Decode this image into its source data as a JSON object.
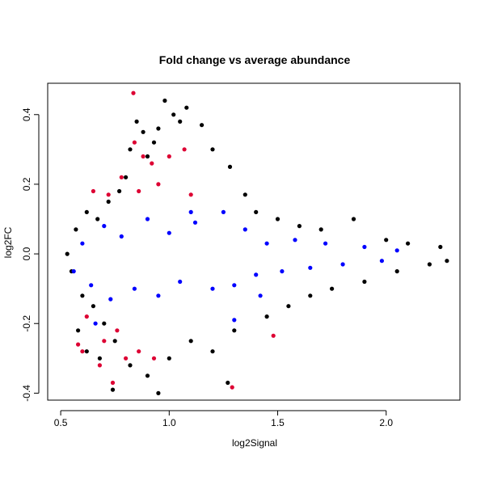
{
  "chart_data": {
    "type": "scatter",
    "title": "Fold change vs average abundance",
    "xlabel": "log2Signal",
    "ylabel": "log2FC",
    "xlim": [
      0.44,
      2.34
    ],
    "ylim": [
      -0.42,
      0.49
    ],
    "xticks": [
      0.5,
      1.0,
      1.5,
      2.0
    ],
    "xtick_labels": [
      "0.5",
      "1.0",
      "1.5",
      "2.0"
    ],
    "yticks": [
      -0.4,
      -0.2,
      0.0,
      0.2,
      0.4
    ],
    "ytick_labels": [
      "-0.4",
      "-0.2",
      "0.0",
      "0.2",
      "0.4"
    ],
    "grid": false,
    "legend": "none",
    "colors": {
      "black": "#000000",
      "blue": "#0000ff",
      "red": "#dd0033"
    },
    "series": [
      {
        "color": "#000000",
        "points": [
          [
            0.53,
            0.0
          ],
          [
            0.55,
            -0.05
          ],
          [
            0.57,
            0.07
          ],
          [
            0.6,
            -0.12
          ],
          [
            0.62,
            0.12
          ],
          [
            0.65,
            -0.15
          ],
          [
            0.67,
            0.1
          ],
          [
            0.7,
            -0.2
          ],
          [
            0.72,
            0.15
          ],
          [
            0.75,
            -0.25
          ],
          [
            0.77,
            0.18
          ],
          [
            0.8,
            0.22
          ],
          [
            0.82,
            0.3
          ],
          [
            0.85,
            0.38
          ],
          [
            0.88,
            0.35
          ],
          [
            0.9,
            0.28
          ],
          [
            0.93,
            0.32
          ],
          [
            0.95,
            0.36
          ],
          [
            0.98,
            0.44
          ],
          [
            1.02,
            0.4
          ],
          [
            1.05,
            0.38
          ],
          [
            1.08,
            0.42
          ],
          [
            1.15,
            0.37
          ],
          [
            1.2,
            0.3
          ],
          [
            1.28,
            0.25
          ],
          [
            1.35,
            0.17
          ],
          [
            1.4,
            0.12
          ],
          [
            1.5,
            0.1
          ],
          [
            1.6,
            0.08
          ],
          [
            1.7,
            0.07
          ],
          [
            1.85,
            0.1
          ],
          [
            2.0,
            0.04
          ],
          [
            2.1,
            0.03
          ],
          [
            2.25,
            0.02
          ],
          [
            2.28,
            -0.02
          ],
          [
            2.2,
            -0.03
          ],
          [
            2.05,
            -0.05
          ],
          [
            1.9,
            -0.08
          ],
          [
            1.75,
            -0.1
          ],
          [
            1.65,
            -0.12
          ],
          [
            1.55,
            -0.15
          ],
          [
            1.45,
            -0.18
          ],
          [
            1.3,
            -0.22
          ],
          [
            1.27,
            -0.37
          ],
          [
            1.2,
            -0.28
          ],
          [
            1.1,
            -0.25
          ],
          [
            1.0,
            -0.3
          ],
          [
            0.95,
            -0.4
          ],
          [
            0.9,
            -0.35
          ],
          [
            0.82,
            -0.32
          ],
          [
            0.74,
            -0.39
          ],
          [
            0.68,
            -0.3
          ],
          [
            0.62,
            -0.28
          ],
          [
            0.58,
            -0.22
          ]
        ]
      },
      {
        "color": "#0000ff",
        "points": [
          [
            0.56,
            -0.05
          ],
          [
            0.6,
            0.03
          ],
          [
            0.64,
            -0.09
          ],
          [
            0.7,
            0.08
          ],
          [
            0.73,
            -0.13
          ],
          [
            0.78,
            0.05
          ],
          [
            0.84,
            -0.1
          ],
          [
            0.9,
            0.1
          ],
          [
            0.95,
            -0.12
          ],
          [
            1.0,
            0.06
          ],
          [
            1.05,
            -0.08
          ],
          [
            1.12,
            0.09
          ],
          [
            1.2,
            -0.1
          ],
          [
            1.25,
            0.12
          ],
          [
            1.3,
            -0.09
          ],
          [
            1.35,
            0.07
          ],
          [
            1.4,
            -0.06
          ],
          [
            1.45,
            0.03
          ],
          [
            1.52,
            -0.05
          ],
          [
            1.58,
            0.04
          ],
          [
            1.65,
            -0.04
          ],
          [
            1.72,
            0.03
          ],
          [
            1.8,
            -0.03
          ],
          [
            1.9,
            0.02
          ],
          [
            1.98,
            -0.02
          ],
          [
            2.05,
            0.01
          ],
          [
            1.3,
            -0.19
          ],
          [
            1.42,
            -0.12
          ],
          [
            1.1,
            0.12
          ],
          [
            0.66,
            -0.2
          ]
        ]
      },
      {
        "color": "#dd0033",
        "points": [
          [
            0.835,
            0.462
          ],
          [
            0.84,
            0.32
          ],
          [
            0.88,
            0.28
          ],
          [
            1.0,
            0.28
          ],
          [
            1.07,
            0.3
          ],
          [
            0.92,
            0.26
          ],
          [
            0.78,
            0.22
          ],
          [
            0.86,
            0.18
          ],
          [
            0.95,
            0.2
          ],
          [
            1.1,
            0.17
          ],
          [
            0.72,
            0.17
          ],
          [
            0.65,
            0.18
          ],
          [
            0.62,
            -0.18
          ],
          [
            0.58,
            -0.26
          ],
          [
            0.6,
            -0.28
          ],
          [
            0.7,
            -0.25
          ],
          [
            0.76,
            -0.22
          ],
          [
            0.8,
            -0.3
          ],
          [
            0.86,
            -0.28
          ],
          [
            0.93,
            -0.3
          ],
          [
            0.74,
            -0.37
          ],
          [
            1.29,
            -0.383
          ],
          [
            1.48,
            -0.235
          ],
          [
            0.68,
            -0.32
          ]
        ]
      }
    ]
  }
}
